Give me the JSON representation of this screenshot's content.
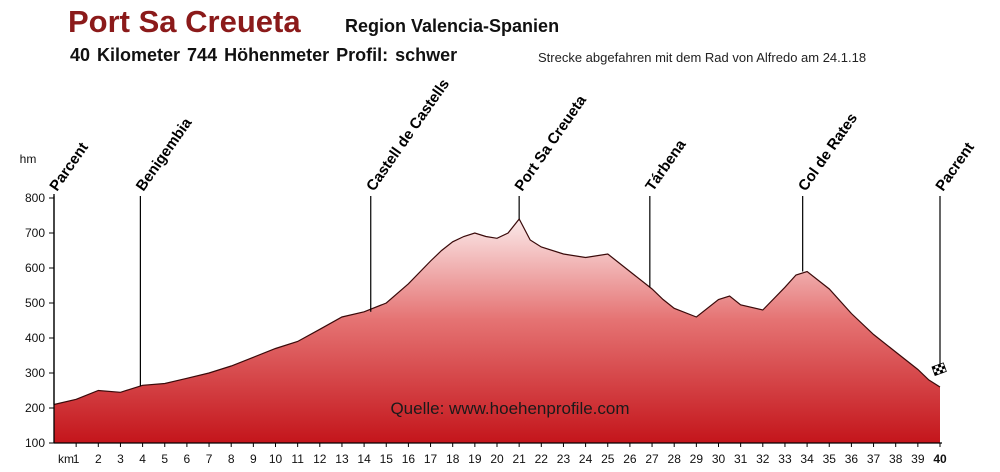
{
  "header": {
    "title": "Port Sa Creueta",
    "region": "Region Valencia-Spanien",
    "stats": "40 Kilometer  744 Höhenmeter  Profil: schwer",
    "note": "Strecke abgefahren mit dem Rad von Alfredo am 24.1.18"
  },
  "chart_data": {
    "type": "area",
    "ylabel": "hm",
    "xlabel": "km",
    "xlim": [
      0,
      40
    ],
    "ylim": [
      100,
      800
    ],
    "x_ticks": [
      "1",
      "2",
      "3",
      "4",
      "5",
      "6",
      "7",
      "8",
      "9",
      "10",
      "11",
      "12",
      "13",
      "14",
      "15",
      "16",
      "17",
      "18",
      "19",
      "20",
      "21",
      "22",
      "23",
      "24",
      "25",
      "26",
      "27",
      "28",
      "29",
      "30",
      "31",
      "32",
      "33",
      "34",
      "35",
      "36",
      "37",
      "38",
      "39",
      "40"
    ],
    "y_ticks": [
      100,
      200,
      300,
      400,
      500,
      600,
      700,
      800
    ],
    "grid": false,
    "fill_colors": {
      "top": "#fbeaea",
      "bottom": "#c4151b"
    },
    "source_text": "Quelle: www.hoehenprofile.com",
    "x": [
      0,
      1,
      2,
      3,
      4,
      5,
      6,
      7,
      8,
      9,
      10,
      11,
      12,
      13,
      14,
      15,
      16,
      17,
      17.5,
      18,
      18.5,
      19,
      19.5,
      20,
      20.5,
      21,
      21.5,
      22,
      23,
      24,
      25,
      26,
      27,
      27.5,
      28,
      29,
      30,
      30.5,
      31,
      32,
      33,
      33.5,
      34,
      35,
      36,
      37,
      38,
      39,
      39.5,
      40
    ],
    "y": [
      210,
      225,
      250,
      245,
      265,
      270,
      285,
      300,
      320,
      345,
      370,
      390,
      425,
      460,
      475,
      500,
      555,
      620,
      650,
      675,
      690,
      700,
      690,
      685,
      700,
      740,
      680,
      660,
      640,
      630,
      640,
      590,
      540,
      510,
      485,
      460,
      510,
      520,
      495,
      480,
      545,
      580,
      590,
      540,
      470,
      410,
      360,
      310,
      280,
      260
    ],
    "waypoints": [
      {
        "label": "Parcent",
        "km": 0,
        "elev": 210
      },
      {
        "label": "Benigembia",
        "km": 3.9,
        "elev": 262
      },
      {
        "label": "Castell de Castells",
        "km": 14.3,
        "elev": 475
      },
      {
        "label": "Port Sa Creueta",
        "km": 21.0,
        "elev": 740
      },
      {
        "label": "Tárbena",
        "km": 26.9,
        "elev": 545
      },
      {
        "label": "Col de Rates",
        "km": 33.8,
        "elev": 590
      },
      {
        "label": "Pacrent",
        "km": 40,
        "elev": 260
      }
    ]
  }
}
